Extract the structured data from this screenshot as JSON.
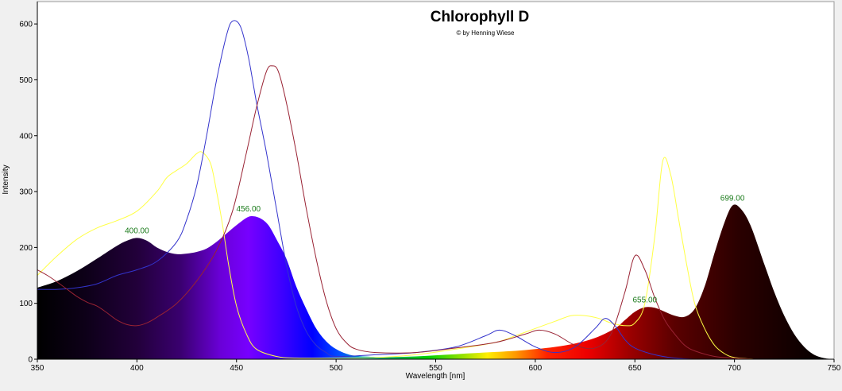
{
  "chart_data": {
    "type": "line",
    "title": "Chlorophyll D",
    "subtitle": "© by Henning Wiese",
    "xlabel": "Wavelength [nm]",
    "ylabel": "Intensity",
    "xlim": [
      350,
      750
    ],
    "ylim": [
      0,
      640
    ],
    "x_ticks": [
      350,
      400,
      450,
      500,
      550,
      600,
      650,
      700,
      750
    ],
    "y_ticks": [
      0,
      100,
      200,
      300,
      400,
      500,
      600
    ],
    "grid": false,
    "legend": "none",
    "filled_series": {
      "name": "",
      "fill": "visible-spectrum-gradient",
      "points": [
        [
          350,
          128
        ],
        [
          360,
          140
        ],
        [
          370,
          158
        ],
        [
          380,
          180
        ],
        [
          390,
          203
        ],
        [
          395,
          212
        ],
        [
          400,
          217
        ],
        [
          405,
          212
        ],
        [
          410,
          200
        ],
        [
          415,
          192
        ],
        [
          420,
          188
        ],
        [
          425,
          189
        ],
        [
          430,
          192
        ],
        [
          435,
          198
        ],
        [
          440,
          210
        ],
        [
          445,
          225
        ],
        [
          450,
          240
        ],
        [
          455,
          253
        ],
        [
          458,
          256
        ],
        [
          462,
          252
        ],
        [
          466,
          240
        ],
        [
          470,
          215
        ],
        [
          475,
          180
        ],
        [
          480,
          130
        ],
        [
          485,
          90
        ],
        [
          490,
          55
        ],
        [
          495,
          32
        ],
        [
          500,
          18
        ],
        [
          505,
          10
        ],
        [
          510,
          6
        ],
        [
          520,
          4
        ],
        [
          530,
          4
        ],
        [
          540,
          5
        ],
        [
          550,
          7
        ],
        [
          560,
          9
        ],
        [
          570,
          11
        ],
        [
          580,
          13
        ],
        [
          590,
          15
        ],
        [
          600,
          18
        ],
        [
          610,
          22
        ],
        [
          620,
          28
        ],
        [
          630,
          38
        ],
        [
          640,
          55
        ],
        [
          645,
          70
        ],
        [
          650,
          85
        ],
        [
          655,
          93
        ],
        [
          660,
          92
        ],
        [
          665,
          85
        ],
        [
          670,
          78
        ],
        [
          675,
          76
        ],
        [
          680,
          90
        ],
        [
          685,
          130
        ],
        [
          690,
          190
        ],
        [
          695,
          245
        ],
        [
          699,
          275
        ],
        [
          703,
          270
        ],
        [
          708,
          240
        ],
        [
          715,
          170
        ],
        [
          720,
          120
        ],
        [
          725,
          78
        ],
        [
          730,
          45
        ],
        [
          735,
          22
        ],
        [
          740,
          8
        ],
        [
          745,
          2
        ],
        [
          750,
          0
        ]
      ]
    },
    "peak_labels": [
      {
        "x": 400,
        "y": 217,
        "label": "400.00"
      },
      {
        "x": 456,
        "y": 256,
        "label": "456.00"
      },
      {
        "x": 655,
        "y": 93,
        "label": "655.00"
      },
      {
        "x": 699,
        "y": 275,
        "label": "699.00"
      }
    ],
    "line_series": [
      {
        "name": "",
        "color": "#ffff44",
        "points": [
          [
            350,
            150
          ],
          [
            360,
            185
          ],
          [
            370,
            215
          ],
          [
            380,
            235
          ],
          [
            390,
            248
          ],
          [
            400,
            265
          ],
          [
            410,
            300
          ],
          [
            415,
            325
          ],
          [
            420,
            338
          ],
          [
            425,
            350
          ],
          [
            430,
            368
          ],
          [
            433,
            370
          ],
          [
            437,
            350
          ],
          [
            440,
            300
          ],
          [
            443,
            240
          ],
          [
            446,
            170
          ],
          [
            450,
            95
          ],
          [
            455,
            45
          ],
          [
            460,
            18
          ],
          [
            470,
            5
          ],
          [
            480,
            2
          ],
          [
            500,
            2
          ],
          [
            520,
            3
          ],
          [
            540,
            8
          ],
          [
            560,
            18
          ],
          [
            580,
            30
          ],
          [
            590,
            42
          ],
          [
            600,
            55
          ],
          [
            610,
            68
          ],
          [
            618,
            78
          ],
          [
            625,
            78
          ],
          [
            632,
            73
          ],
          [
            638,
            65
          ],
          [
            645,
            60
          ],
          [
            650,
            65
          ],
          [
            655,
            100
          ],
          [
            660,
            220
          ],
          [
            664,
            355
          ],
          [
            668,
            330
          ],
          [
            672,
            250
          ],
          [
            676,
            170
          ],
          [
            680,
            100
          ],
          [
            685,
            55
          ],
          [
            690,
            25
          ],
          [
            695,
            10
          ],
          [
            700,
            3
          ],
          [
            710,
            0
          ]
        ]
      },
      {
        "name": "",
        "color": "#3333cc",
        "points": [
          [
            350,
            125
          ],
          [
            360,
            125
          ],
          [
            370,
            128
          ],
          [
            380,
            135
          ],
          [
            390,
            150
          ],
          [
            400,
            160
          ],
          [
            410,
            175
          ],
          [
            420,
            210
          ],
          [
            425,
            250
          ],
          [
            430,
            310
          ],
          [
            435,
            400
          ],
          [
            440,
            500
          ],
          [
            445,
            580
          ],
          [
            448,
            605
          ],
          [
            452,
            595
          ],
          [
            456,
            540
          ],
          [
            460,
            460
          ],
          [
            465,
            370
          ],
          [
            470,
            270
          ],
          [
            475,
            170
          ],
          [
            480,
            95
          ],
          [
            485,
            50
          ],
          [
            490,
            25
          ],
          [
            495,
            12
          ],
          [
            500,
            5
          ],
          [
            520,
            8
          ],
          [
            540,
            12
          ],
          [
            560,
            22
          ],
          [
            575,
            42
          ],
          [
            582,
            52
          ],
          [
            590,
            42
          ],
          [
            600,
            22
          ],
          [
            610,
            12
          ],
          [
            620,
            22
          ],
          [
            630,
            55
          ],
          [
            635,
            73
          ],
          [
            640,
            60
          ],
          [
            645,
            35
          ],
          [
            650,
            20
          ],
          [
            660,
            8
          ],
          [
            670,
            2
          ],
          [
            680,
            0
          ]
        ]
      },
      {
        "name": "",
        "color": "#992233",
        "points": [
          [
            350,
            160
          ],
          [
            355,
            150
          ],
          [
            360,
            138
          ],
          [
            365,
            125
          ],
          [
            370,
            112
          ],
          [
            375,
            102
          ],
          [
            380,
            95
          ],
          [
            385,
            83
          ],
          [
            390,
            70
          ],
          [
            395,
            62
          ],
          [
            400,
            60
          ],
          [
            405,
            65
          ],
          [
            410,
            75
          ],
          [
            420,
            100
          ],
          [
            430,
            140
          ],
          [
            440,
            195
          ],
          [
            448,
            265
          ],
          [
            455,
            370
          ],
          [
            460,
            450
          ],
          [
            465,
            515
          ],
          [
            468,
            525
          ],
          [
            471,
            515
          ],
          [
            475,
            460
          ],
          [
            480,
            370
          ],
          [
            485,
            270
          ],
          [
            490,
            180
          ],
          [
            495,
            105
          ],
          [
            500,
            55
          ],
          [
            505,
            30
          ],
          [
            510,
            18
          ],
          [
            520,
            12
          ],
          [
            540,
            12
          ],
          [
            560,
            20
          ],
          [
            580,
            30
          ],
          [
            595,
            45
          ],
          [
            602,
            52
          ],
          [
            610,
            45
          ],
          [
            620,
            25
          ],
          [
            630,
            20
          ],
          [
            638,
            45
          ],
          [
            645,
            120
          ],
          [
            650,
            185
          ],
          [
            655,
            160
          ],
          [
            660,
            110
          ],
          [
            665,
            70
          ],
          [
            670,
            45
          ],
          [
            675,
            25
          ],
          [
            680,
            15
          ],
          [
            690,
            5
          ],
          [
            700,
            2
          ],
          [
            710,
            0
          ]
        ]
      }
    ]
  }
}
